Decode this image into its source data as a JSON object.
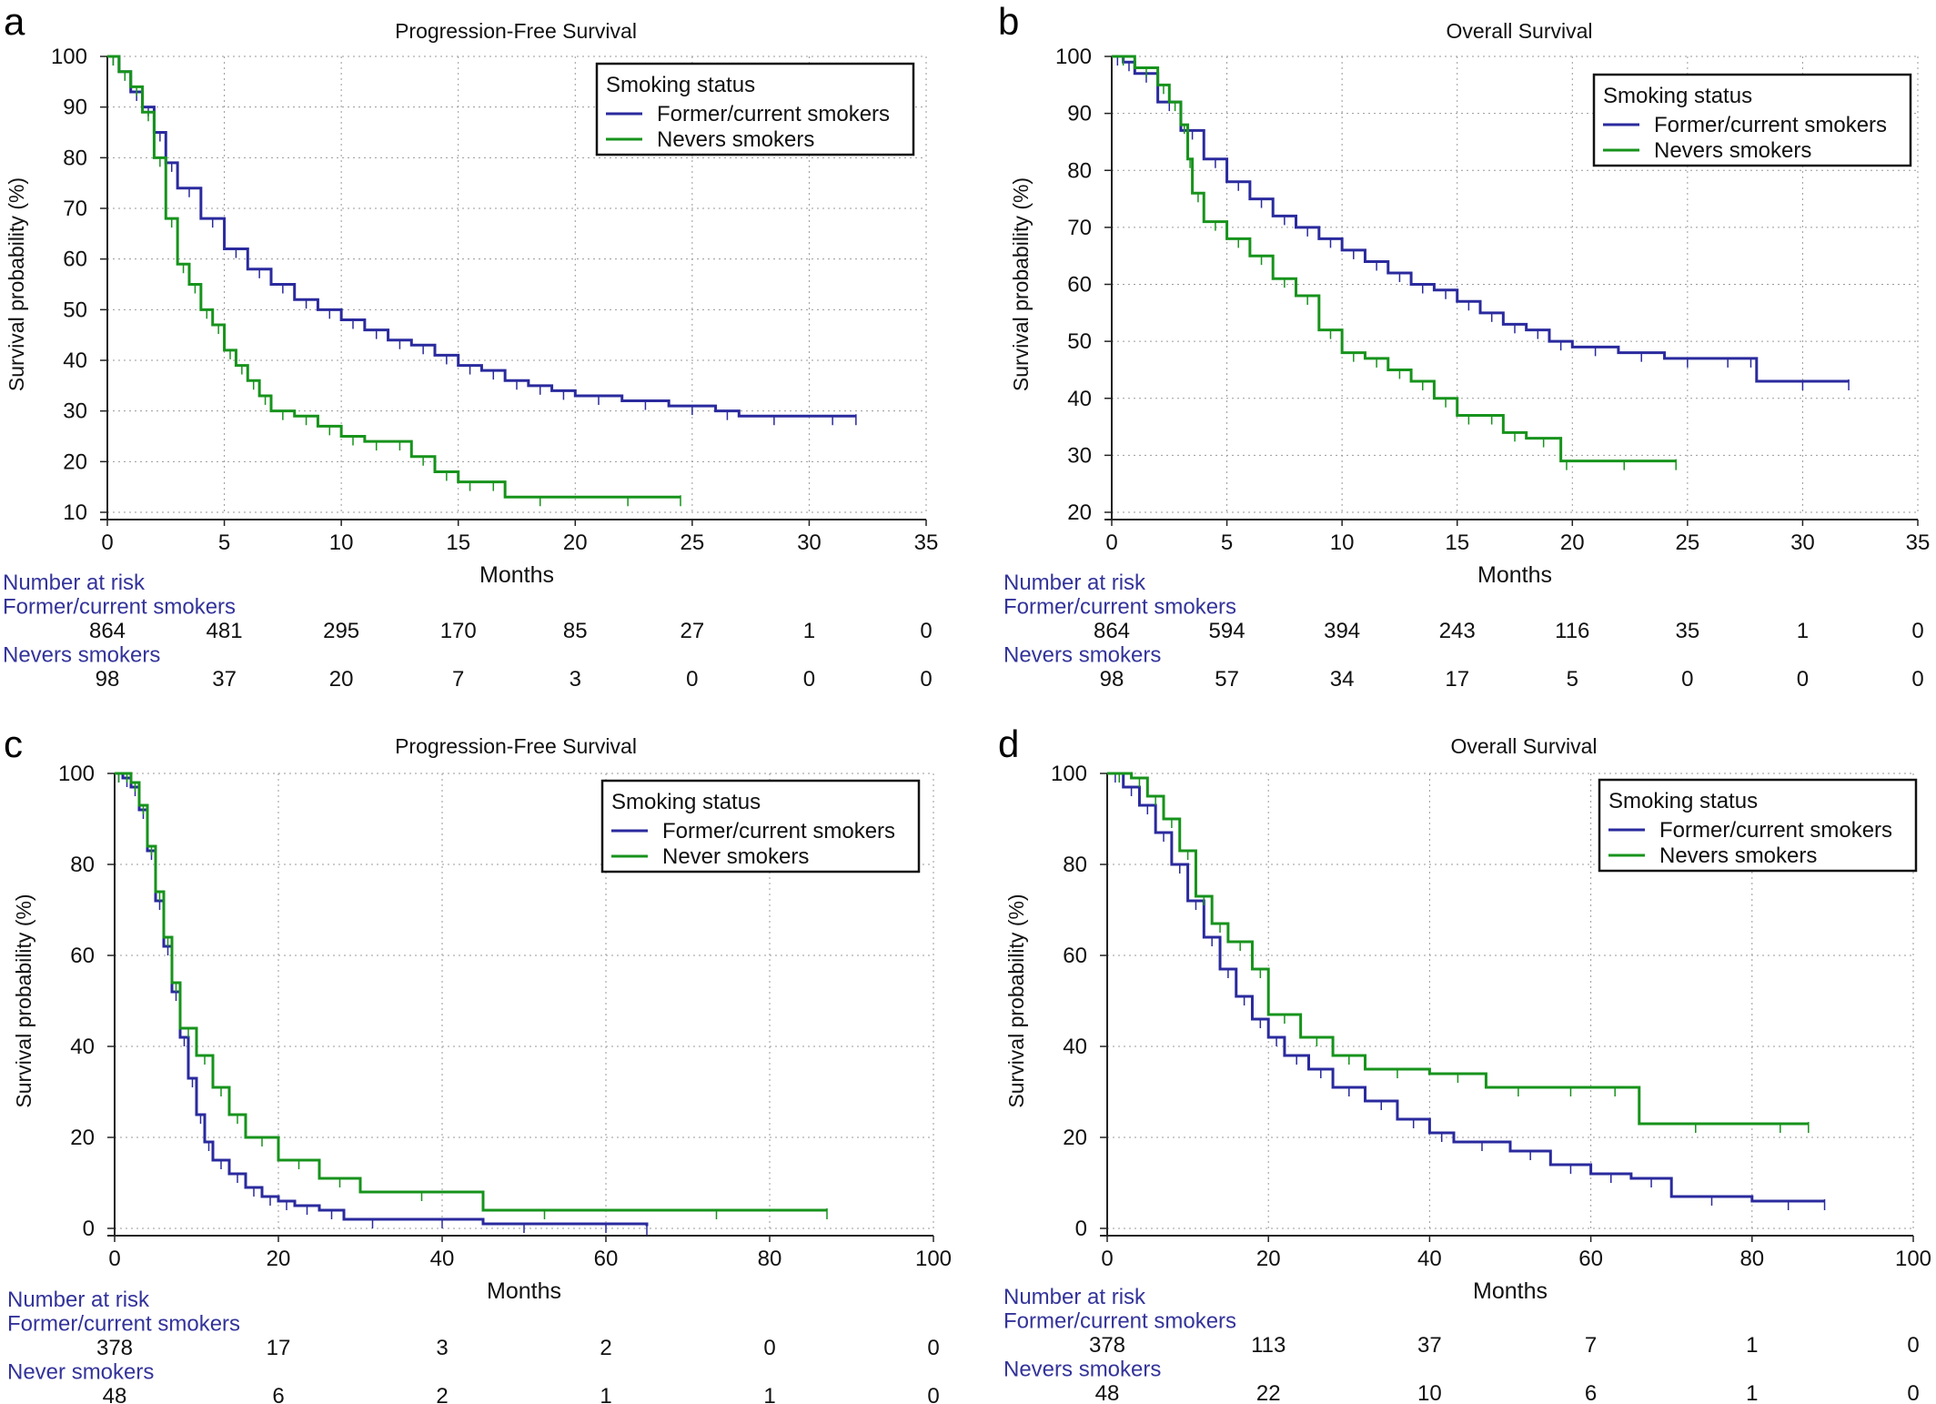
{
  "colors": {
    "former": "#2a2a9e",
    "never": "#17931c",
    "risk_text": "#33339a"
  },
  "chart_data": [
    {
      "panel_label": "a",
      "type": "line",
      "title": "Progression-Free Survival",
      "xlabel": "Months",
      "ylabel": "Survival probability (%)",
      "xlim": [
        0,
        35
      ],
      "ylim": [
        10,
        100
      ],
      "xticks": [
        0,
        5,
        10,
        15,
        20,
        25,
        30,
        35
      ],
      "yticks": [
        10,
        20,
        30,
        40,
        50,
        60,
        70,
        80,
        90,
        100
      ],
      "grid": true,
      "legend": {
        "title": "Smoking status",
        "position": "top-right"
      },
      "series": [
        {
          "name": "Former/current smokers",
          "color_key": "former",
          "x": [
            0,
            0.5,
            1,
            1.5,
            2,
            2.5,
            3,
            4,
            5,
            6,
            7,
            8,
            9,
            10,
            11,
            12,
            13,
            14,
            15,
            16,
            17,
            18,
            19,
            20,
            22,
            24,
            26,
            27,
            30,
            32
          ],
          "y": [
            100,
            97,
            93,
            90,
            85,
            79,
            74,
            68,
            62,
            58,
            55,
            52,
            50,
            48,
            46,
            44,
            43,
            41,
            39,
            38,
            36,
            35,
            34,
            33,
            32,
            31,
            30,
            29,
            29,
            29
          ]
        },
        {
          "name": "Nevers smokers",
          "color_key": "never",
          "x": [
            0,
            0.5,
            1,
            1.5,
            2,
            2.5,
            3,
            3.5,
            4,
            4.5,
            5,
            5.5,
            6,
            6.5,
            7,
            8,
            9,
            10,
            11,
            12,
            13,
            14,
            15,
            16,
            17,
            20,
            24.5
          ],
          "y": [
            100,
            97,
            94,
            89,
            80,
            68,
            59,
            55,
            50,
            47,
            42,
            39,
            36,
            33,
            30,
            29,
            27,
            25,
            24,
            24,
            21,
            18,
            16,
            16,
            13,
            13,
            13
          ]
        }
      ],
      "risk_table": {
        "title": "Number at risk",
        "rows": [
          {
            "name": "Former/current smokers",
            "values": [
              "864",
              "481",
              "295",
              "170",
              "85",
              "27",
              "1",
              "0"
            ]
          },
          {
            "name": "Nevers smokers",
            "values": [
              "98",
              "37",
              "20",
              "7",
              "3",
              "0",
              "0",
              "0"
            ]
          }
        ]
      }
    },
    {
      "panel_label": "b",
      "type": "line",
      "title": "Overall Survival",
      "xlabel": "Months",
      "ylabel": "Survival probability (%)",
      "xlim": [
        0,
        35
      ],
      "ylim": [
        20,
        100
      ],
      "xticks": [
        0,
        5,
        10,
        15,
        20,
        25,
        30,
        35
      ],
      "yticks": [
        20,
        30,
        40,
        50,
        60,
        70,
        80,
        90,
        100
      ],
      "grid": true,
      "legend": {
        "title": "Smoking status",
        "position": "top-right"
      },
      "series": [
        {
          "name": "Former/current smokers",
          "color_key": "former",
          "x": [
            0,
            0.5,
            1,
            2,
            3,
            4,
            5,
            6,
            7,
            8,
            9,
            10,
            11,
            12,
            13,
            14,
            15,
            16,
            17,
            18,
            19,
            20,
            22,
            24,
            26,
            27.5,
            28,
            32
          ],
          "y": [
            100,
            99,
            97,
            92,
            87,
            82,
            78,
            75,
            72,
            70,
            68,
            66,
            64,
            62,
            60,
            59,
            57,
            55,
            53,
            52,
            50,
            49,
            48,
            47,
            47,
            47,
            43,
            43
          ]
        },
        {
          "name": "Nevers smokers",
          "color_key": "never",
          "x": [
            0,
            1,
            2,
            2.5,
            3,
            3.3,
            3.5,
            4,
            5,
            6,
            7,
            8,
            9,
            10,
            11,
            12,
            13,
            14,
            15,
            16,
            17,
            18,
            19.5,
            20,
            24.5
          ],
          "y": [
            100,
            98,
            95,
            92,
            88,
            82,
            76,
            71,
            68,
            65,
            61,
            58,
            52,
            48,
            47,
            45,
            43,
            40,
            37,
            37,
            34,
            33,
            29,
            29,
            29
          ]
        }
      ],
      "risk_table": {
        "title": "Number at risk",
        "rows": [
          {
            "name": "Former/current smokers",
            "values": [
              "864",
              "594",
              "394",
              "243",
              "116",
              "35",
              "1",
              "0"
            ]
          },
          {
            "name": "Nevers smokers",
            "values": [
              "98",
              "57",
              "34",
              "17",
              "5",
              "0",
              "0",
              "0"
            ]
          }
        ]
      }
    },
    {
      "panel_label": "c",
      "type": "line",
      "title": "Progression-Free Survival",
      "xlabel": "Months",
      "ylabel": "Survival probability (%)",
      "xlim": [
        0,
        100
      ],
      "ylim": [
        0,
        100
      ],
      "xticks": [
        0,
        20,
        40,
        60,
        80,
        100
      ],
      "yticks": [
        0,
        20,
        40,
        60,
        80,
        100
      ],
      "grid": true,
      "legend": {
        "title": "Smoking status",
        "position": "top-right"
      },
      "series": [
        {
          "name": "Former/current smokers",
          "color_key": "former",
          "x": [
            0,
            1,
            2,
            3,
            4,
            5,
            6,
            7,
            8,
            9,
            10,
            11,
            12,
            14,
            16,
            18,
            20,
            22,
            25,
            28,
            35,
            45,
            55,
            65
          ],
          "y": [
            100,
            99,
            97,
            92,
            83,
            72,
            62,
            52,
            42,
            33,
            25,
            19,
            15,
            12,
            9,
            7,
            6,
            5,
            4,
            2,
            2,
            1,
            1,
            0.5
          ]
        },
        {
          "name": "Never smokers",
          "color_key": "never",
          "x": [
            0,
            1,
            2,
            3,
            4,
            5,
            6,
            7,
            8,
            10,
            12,
            14,
            16,
            20,
            25,
            30,
            45,
            60,
            87
          ],
          "y": [
            100,
            100,
            98,
            93,
            84,
            74,
            64,
            54,
            44,
            38,
            31,
            25,
            20,
            15,
            11,
            8,
            4,
            4,
            4
          ]
        }
      ],
      "risk_table": {
        "title": "Number at risk",
        "rows": [
          {
            "name": "Former/current smokers",
            "values": [
              "378",
              "17",
              "3",
              "2",
              "0",
              "0"
            ]
          },
          {
            "name": "Never smokers",
            "values": [
              "48",
              "6",
              "2",
              "1",
              "1",
              "0"
            ]
          }
        ]
      }
    },
    {
      "panel_label": "d",
      "type": "line",
      "title": "Overall Survival",
      "xlabel": "Months",
      "ylabel": "Survival probability (%)",
      "xlim": [
        0,
        100
      ],
      "ylim": [
        0,
        100
      ],
      "xticks": [
        0,
        20,
        40,
        60,
        80,
        100
      ],
      "yticks": [
        0,
        20,
        40,
        60,
        80,
        100
      ],
      "grid": true,
      "legend": {
        "title": "Smoking status",
        "position": "top-right"
      },
      "series": [
        {
          "name": "Former/current smokers",
          "color_key": "former",
          "x": [
            0,
            2,
            4,
            6,
            8,
            10,
            12,
            14,
            16,
            18,
            20,
            22,
            25,
            28,
            32,
            36,
            40,
            43,
            50,
            55,
            60,
            65,
            70,
            80,
            89
          ],
          "y": [
            100,
            97,
            93,
            87,
            80,
            72,
            64,
            57,
            51,
            46,
            42,
            38,
            35,
            31,
            28,
            24,
            21,
            19,
            17,
            14,
            12,
            11,
            7,
            6,
            6
          ]
        },
        {
          "name": "Nevers smokers",
          "color_key": "never",
          "x": [
            0,
            3,
            5,
            7,
            9,
            11,
            13,
            15,
            18,
            20,
            24,
            28,
            32,
            40,
            47,
            55,
            60,
            66,
            80,
            87
          ],
          "y": [
            100,
            99,
            95,
            90,
            83,
            73,
            67,
            63,
            57,
            47,
            42,
            38,
            35,
            34,
            31,
            31,
            31,
            23,
            23,
            23
          ]
        }
      ],
      "risk_table": {
        "title": "Number at risk",
        "rows": [
          {
            "name": "Former/current smokers",
            "values": [
              "378",
              "113",
              "37",
              "7",
              "1",
              "0"
            ]
          },
          {
            "name": "Nevers smokers",
            "values": [
              "48",
              "22",
              "10",
              "6",
              "1",
              "0"
            ]
          }
        ]
      }
    }
  ]
}
